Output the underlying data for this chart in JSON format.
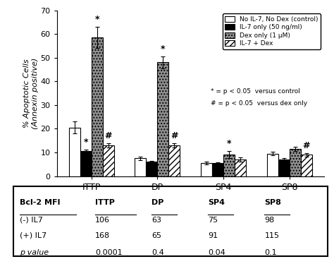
{
  "categories": [
    "ITTP",
    "DP",
    "SP4",
    "SP8"
  ],
  "bar_labels": [
    "No IL-7, No Dex (control)",
    "IL-7 only (50 ng/ml)",
    "Dex only (1 μM)",
    "IL-7 + Dex"
  ],
  "values": [
    [
      20.5,
      10.5,
      58.5,
      13.0
    ],
    [
      7.5,
      6.0,
      48.0,
      13.0
    ],
    [
      5.5,
      5.5,
      9.0,
      7.0
    ],
    [
      9.5,
      7.0,
      11.5,
      9.0
    ]
  ],
  "errors": [
    [
      2.5,
      0.7,
      4.5,
      0.8
    ],
    [
      0.8,
      0.5,
      2.5,
      0.8
    ],
    [
      0.5,
      0.4,
      1.5,
      0.8
    ],
    [
      0.8,
      0.5,
      0.8,
      0.7
    ]
  ],
  "star_marks": [
    [
      false,
      true,
      true,
      false
    ],
    [
      false,
      false,
      true,
      false
    ],
    [
      false,
      false,
      true,
      false
    ],
    [
      false,
      false,
      false,
      false
    ]
  ],
  "hash_marks": [
    [
      false,
      false,
      false,
      true
    ],
    [
      false,
      false,
      false,
      true
    ],
    [
      false,
      false,
      false,
      false
    ],
    [
      false,
      false,
      false,
      true
    ]
  ],
  "ylim": [
    0,
    70
  ],
  "yticks": [
    0,
    10,
    20,
    30,
    40,
    50,
    60,
    70
  ],
  "ylabel": "% Apoptotic Cells\n(Annexin positive)",
  "legend_note1": "* = p < 0.05  versus control",
  "legend_note2": "# = p < 0.05  versus dex only",
  "table_header": [
    "Bcl-2 MFI",
    "ITTP",
    "DP",
    "SP4",
    "SP8"
  ],
  "table_row1_label": "(-) IL7",
  "table_row1": [
    "106",
    "63",
    "75",
    "98"
  ],
  "table_row2_label": "(+) IL7",
  "table_row2": [
    "168",
    "65",
    "91",
    "115"
  ],
  "table_row3_label": "p value",
  "table_row3": [
    "0.0001",
    "0.4",
    "0.04",
    "0.1"
  ]
}
